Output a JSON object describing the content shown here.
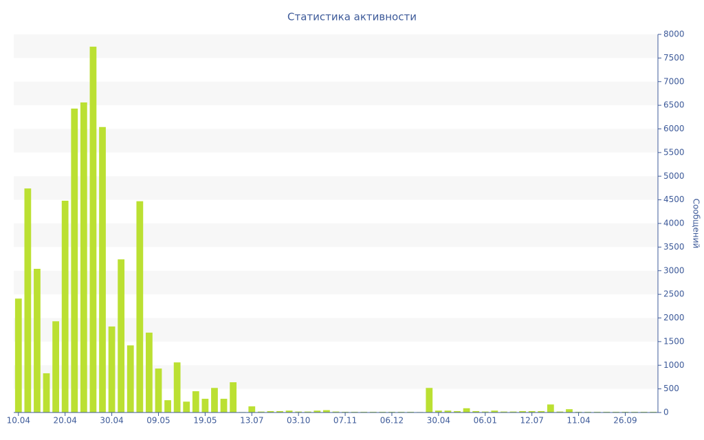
{
  "chart_data": {
    "type": "bar",
    "title": "Статистика активности",
    "y_axis_label": "Сообщений",
    "categories": [
      "10.04",
      null,
      null,
      null,
      null,
      "20.04",
      null,
      null,
      null,
      null,
      "30.04",
      null,
      null,
      null,
      null,
      "09.05",
      null,
      null,
      null,
      null,
      "19.05",
      null,
      null,
      null,
      null,
      "13.07",
      null,
      null,
      null,
      null,
      "03.10",
      null,
      null,
      null,
      null,
      "07.11",
      null,
      null,
      null,
      null,
      "06.12",
      null,
      null,
      null,
      null,
      "30.04",
      null,
      null,
      null,
      null,
      "06.01",
      null,
      null,
      null,
      null,
      "12.07",
      null,
      null,
      null,
      null,
      "11.04",
      null,
      null,
      null,
      null,
      "26.09",
      null,
      null,
      null
    ],
    "values": [
      2410,
      4740,
      3040,
      830,
      1930,
      4480,
      6430,
      6560,
      7740,
      6040,
      1820,
      3240,
      1420,
      4470,
      1690,
      930,
      260,
      1060,
      230,
      450,
      290,
      520,
      290,
      640,
      10,
      130,
      20,
      30,
      30,
      40,
      20,
      20,
      40,
      50,
      20,
      15,
      15,
      15,
      15,
      15,
      15,
      15,
      15,
      10,
      520,
      40,
      40,
      30,
      90,
      30,
      20,
      40,
      20,
      20,
      30,
      30,
      30,
      170,
      20,
      70,
      15,
      15,
      15,
      15,
      15,
      15,
      15,
      15,
      15
    ],
    "color": "#bbe032",
    "ylim": [
      0,
      8000
    ],
    "yticks": [
      0,
      500,
      1000,
      1500,
      2000,
      2500,
      3000,
      3500,
      4000,
      4500,
      5000,
      5500,
      6000,
      6500,
      7000,
      7500,
      8000
    ],
    "grid": "bands",
    "y_axis_side": "right"
  }
}
